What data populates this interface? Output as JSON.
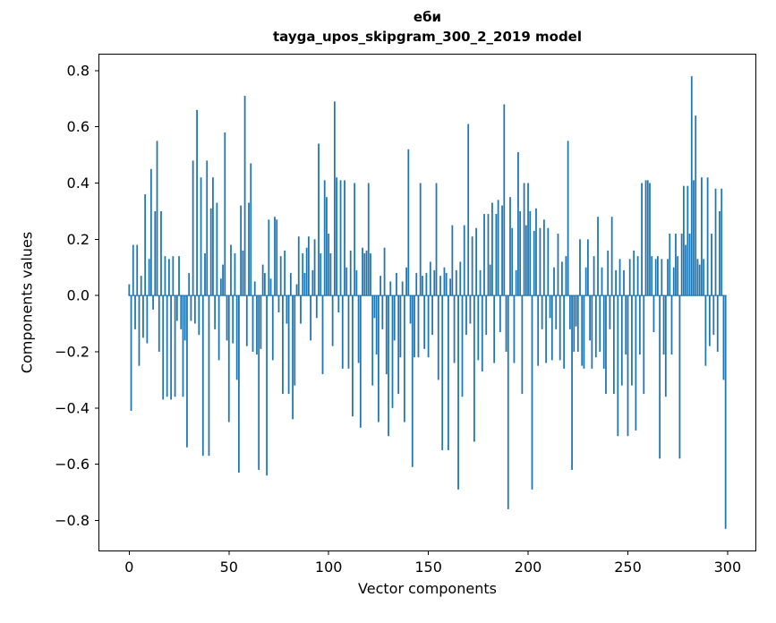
{
  "chart_data": {
    "type": "bar",
    "title_line1": "еби",
    "title_line2": "tayga_upos_skipgram_300_2_2019 model",
    "xlabel": "Vector components",
    "ylabel": "Components values",
    "bar_color": "#1f77b4",
    "axis_color": "#000000",
    "x_ticks": [
      0,
      50,
      100,
      150,
      200,
      250,
      300
    ],
    "y_ticks": [
      0.8,
      0.6,
      0.4,
      0.2,
      0.0,
      -0.2,
      -0.4,
      -0.6,
      -0.8
    ],
    "xlim": [
      -15.4,
      314.4
    ],
    "ylim": [
      -0.91,
      0.86
    ],
    "grid": false,
    "legend": false,
    "values": [
      0.04,
      -0.41,
      0.18,
      -0.12,
      0.18,
      -0.25,
      0.07,
      -0.15,
      0.36,
      -0.17,
      0.13,
      0.45,
      -0.05,
      0.3,
      0.55,
      -0.2,
      0.3,
      -0.37,
      0.14,
      -0.36,
      0.13,
      -0.37,
      0.14,
      -0.36,
      -0.09,
      0.14,
      -0.12,
      -0.36,
      -0.16,
      -0.54,
      0.08,
      -0.09,
      0.48,
      -0.1,
      0.66,
      -0.14,
      0.42,
      -0.57,
      0.15,
      0.48,
      -0.57,
      0.31,
      0.42,
      -0.12,
      0.33,
      -0.23,
      0.06,
      0.11,
      0.58,
      -0.16,
      -0.45,
      0.18,
      -0.17,
      0.15,
      -0.3,
      -0.63,
      0.32,
      0.16,
      0.71,
      -0.18,
      0.33,
      0.47,
      -0.2,
      0.05,
      -0.21,
      -0.62,
      -0.19,
      0.11,
      0.08,
      -0.64,
      0.27,
      0.06,
      -0.23,
      0.28,
      0.27,
      -0.06,
      0.14,
      -0.35,
      0.16,
      -0.1,
      -0.35,
      0.08,
      -0.44,
      -0.32,
      0.04,
      0.21,
      -0.1,
      0.15,
      0.08,
      0.17,
      0.21,
      -0.16,
      0.09,
      0.2,
      -0.08,
      0.54,
      0.15,
      -0.28,
      0.41,
      0.35,
      0.22,
      0.15,
      -0.18,
      0.69,
      0.42,
      -0.06,
      0.41,
      -0.26,
      0.41,
      0.1,
      -0.26,
      0.16,
      -0.43,
      0.4,
      0.09,
      -0.24,
      -0.47,
      0.17,
      0.15,
      0.16,
      0.4,
      0.15,
      -0.32,
      -0.08,
      -0.21,
      -0.45,
      0.07,
      -0.12,
      0.17,
      -0.28,
      -0.5,
      0.05,
      -0.4,
      -0.16,
      0.08,
      -0.35,
      -0.22,
      0.05,
      -0.45,
      0.1,
      0.52,
      -0.1,
      -0.61,
      -0.22,
      0.08,
      -0.22,
      0.4,
      0.07,
      -0.19,
      0.08,
      -0.22,
      0.12,
      -0.14,
      0.09,
      0.4,
      -0.3,
      0.07,
      -0.55,
      0.1,
      0.08,
      -0.55,
      0.06,
      0.25,
      -0.24,
      0.09,
      -0.69,
      0.12,
      -0.36,
      0.25,
      -0.14,
      0.61,
      -0.1,
      0.21,
      -0.52,
      0.24,
      -0.23,
      0.09,
      -0.27,
      0.29,
      -0.14,
      0.29,
      0.11,
      0.33,
      -0.24,
      0.29,
      0.34,
      -0.13,
      0.32,
      0.68,
      -0.2,
      -0.76,
      0.35,
      0.24,
      -0.24,
      0.09,
      0.51,
      0.3,
      -0.35,
      0.4,
      0.25,
      0.4,
      0.3,
      -0.69,
      0.23,
      0.31,
      -0.25,
      0.24,
      -0.12,
      0.27,
      -0.24,
      0.24,
      -0.08,
      -0.23,
      0.1,
      -0.12,
      0.22,
      -0.23,
      0.12,
      -0.26,
      0.14,
      0.55,
      -0.12,
      -0.62,
      -0.2,
      -0.11,
      -0.2,
      0.2,
      -0.25,
      -0.26,
      0.1,
      0.2,
      -0.16,
      -0.26,
      0.14,
      -0.22,
      0.28,
      -0.2,
      0.1,
      -0.26,
      -0.35,
      0.16,
      -0.12,
      0.28,
      -0.35,
      0.09,
      -0.5,
      0.13,
      -0.32,
      0.09,
      -0.21,
      -0.5,
      0.13,
      -0.32,
      0.16,
      -0.48,
      0.14,
      -0.21,
      0.4,
      -0.35,
      0.41,
      0.41,
      0.4,
      0.14,
      -0.13,
      0.13,
      0.14,
      -0.58,
      0.13,
      -0.21,
      -0.36,
      0.13,
      0.22,
      -0.21,
      0.1,
      0.22,
      0.14,
      -0.58,
      0.22,
      0.39,
      0.18,
      0.39,
      0.22,
      0.78,
      0.41,
      0.64,
      0.13,
      0.11,
      0.42,
      0.13,
      -0.25,
      0.42,
      -0.18,
      0.22,
      -0.14,
      0.38,
      -0.2,
      0.3,
      0.38,
      -0.3,
      -0.83
    ]
  }
}
